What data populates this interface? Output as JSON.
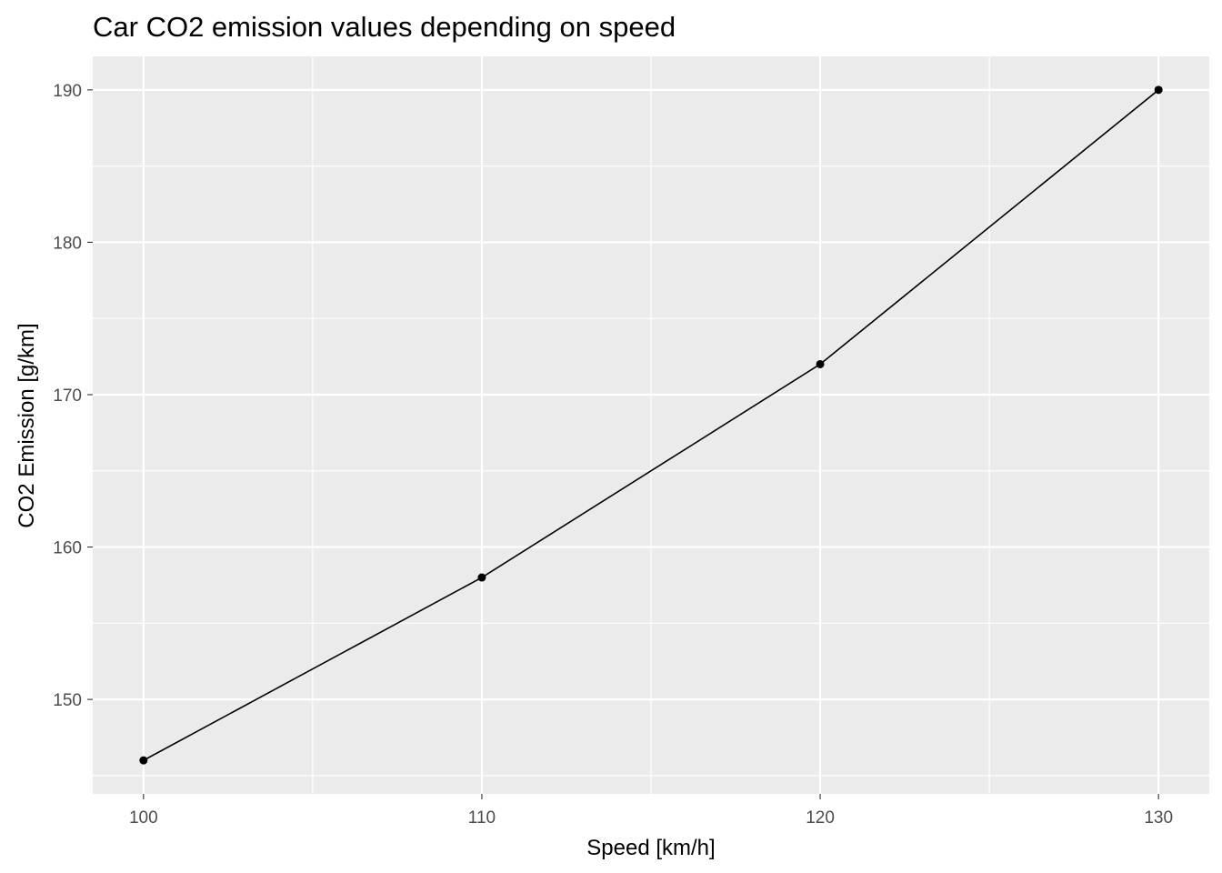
{
  "chart_data": {
    "type": "line",
    "title": "Car CO2 emission values depending on speed",
    "xlabel": "Speed [km/h]",
    "ylabel": "CO2 Emission [g/km]",
    "x": [
      100,
      110,
      120,
      130
    ],
    "series": [
      {
        "values": [
          146,
          158,
          172,
          190
        ]
      }
    ],
    "xlim": [
      98.5,
      131.5
    ],
    "ylim": [
      143.8,
      192.2
    ],
    "x_ticks": [
      100,
      110,
      120,
      130
    ],
    "x_minor_ticks": [
      105,
      115,
      125
    ],
    "y_ticks": [
      150,
      160,
      170,
      180,
      190
    ],
    "y_minor_ticks": [
      145,
      155,
      165,
      175,
      185
    ],
    "grid": true,
    "show_points": true,
    "colors": {
      "panel_background": "#ebebeb",
      "grid": "#ffffff",
      "line": "#000000",
      "point": "#000000",
      "tick_label": "#4d4d4d",
      "axis_title": "#000000"
    }
  }
}
